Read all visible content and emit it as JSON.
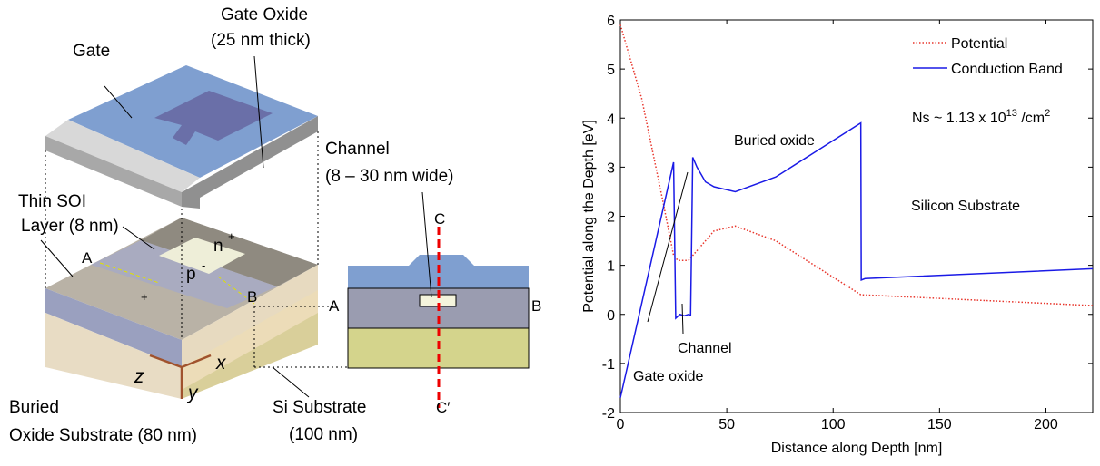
{
  "diagram": {
    "gate": "Gate",
    "gate_oxide": "Gate Oxide",
    "gate_oxide_thickness": "(25 nm thick)",
    "channel": "Channel",
    "channel_width": "(8 – 30 nm wide)",
    "soi_1": "Thin SOI",
    "soi_2": "Layer (8 nm)",
    "point_a": "A",
    "point_b": "B",
    "n": "n",
    "n_sup": "+",
    "p": "p",
    "p_sup": "-",
    "plus": "+",
    "section_a": "A",
    "section_b": "B",
    "cut_c": "C",
    "cut_c2": "C′",
    "axis_z": "z",
    "axis_x": "x",
    "axis_y": "y",
    "box_1": "Buried",
    "box_2": "Oxide Substrate (80 nm)",
    "sub_1": "Si Substrate",
    "sub_2": "(100 nm)"
  },
  "chart_data": {
    "type": "line",
    "xlabel": "Distance along Depth [nm]",
    "ylabel": "Potential along the Depth [eV]",
    "xlim": [
      0,
      222
    ],
    "ylim": [
      -2,
      6
    ],
    "xticks": [
      0,
      50,
      100,
      150,
      200
    ],
    "yticks": [
      -2,
      -1,
      0,
      1,
      2,
      3,
      4,
      5,
      6
    ],
    "legend": "upper right",
    "series": [
      {
        "name": "Potential",
        "color": "#e8352b",
        "style": "dotted",
        "x": [
          0,
          10,
          20,
          25,
          27,
          32,
          38,
          44,
          54,
          73,
          113,
          222
        ],
        "values": [
          5.9,
          4.4,
          2.3,
          1.2,
          1.1,
          1.1,
          1.4,
          1.7,
          1.8,
          1.5,
          0.4,
          0.18
        ]
      },
      {
        "name": "Conduction Band",
        "color": "#1a1ae6",
        "style": "solid",
        "x": [
          0,
          25,
          26,
          28,
          30,
          32,
          33,
          34,
          36,
          40,
          44,
          54,
          73,
          113,
          113.2,
          115,
          222
        ],
        "values": [
          -1.7,
          3.1,
          -0.08,
          0.0,
          -0.03,
          0.0,
          -0.02,
          3.2,
          3.0,
          2.7,
          2.6,
          2.5,
          2.8,
          3.9,
          0.7,
          0.73,
          0.93
        ]
      }
    ],
    "annotations": {
      "buried": "Buried oxide",
      "substrate": "Silicon Substrate",
      "channel": "Channel",
      "gate_oxide": "Gate oxide",
      "ns": "Ns ~ 1.13 x 10",
      "ns_exp": "13",
      "ns_unit": " /cm",
      "ns_unit_exp": "2"
    }
  }
}
